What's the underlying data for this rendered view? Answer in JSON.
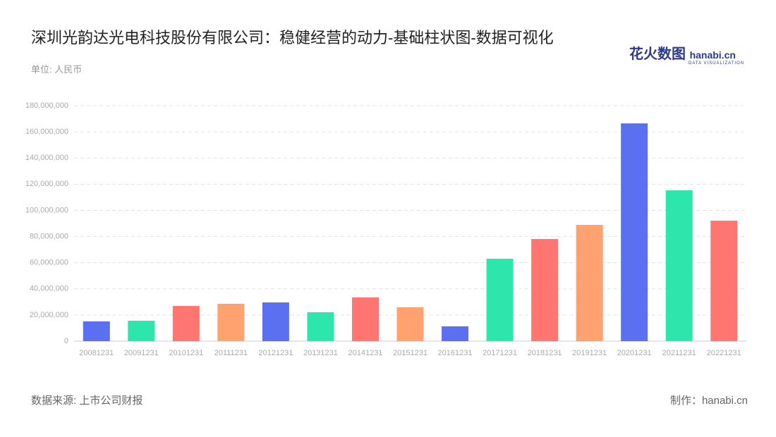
{
  "chart_data": {
    "type": "bar",
    "title": "深圳光韵达光电科技股份有限公司：稳健经营的动力-基础柱状图-数据可视化",
    "subtitle": "单位: 人民币",
    "source": "数据来源: 上市公司财报",
    "credit": "制作：hanabi.cn",
    "logo": {
      "name": "花火数图",
      "site": "hanabi.cn",
      "tagline": "DATA VISUALIZATION"
    },
    "categories": [
      "20081231",
      "20091231",
      "20101231",
      "20111231",
      "20121231",
      "20131231",
      "20141231",
      "20151231",
      "20161231",
      "20171231",
      "20181231",
      "20191231",
      "20201231",
      "20211231",
      "20221231"
    ],
    "values": [
      15100000,
      15600000,
      26900000,
      28600000,
      29600000,
      22100000,
      33400000,
      25900000,
      11300000,
      63000000,
      78100000,
      88900000,
      166500000,
      115300000,
      92100000
    ],
    "colors": [
      "#5b70f0",
      "#2de6ab",
      "#ff7670",
      "#ffa26f",
      "#5b70f0",
      "#2de6ab",
      "#ff7670",
      "#ffa26f",
      "#5b70f0",
      "#2de6ab",
      "#ff7670",
      "#ffa26f",
      "#5b70f0",
      "#2de6ab",
      "#ff7670"
    ],
    "ylim": [
      0,
      180000000
    ],
    "yticks": [
      0,
      {
        "value": 20000000,
        "label": "20,000,000"
      },
      {
        "value": 40000000,
        "label": "40,000,000"
      },
      {
        "value": 60000000,
        "label": "60,000,000"
      },
      {
        "value": 80000000,
        "label": "80,000,000"
      },
      {
        "value": 100000000,
        "label": "100,000,000"
      },
      {
        "value": 120000000,
        "label": "120,000,000"
      },
      {
        "value": 140000000,
        "label": "140,000,000"
      },
      {
        "value": 160000000,
        "label": "160,000,000"
      },
      {
        "value": 180000000,
        "label": "180,000,000"
      }
    ],
    "grid": true
  }
}
